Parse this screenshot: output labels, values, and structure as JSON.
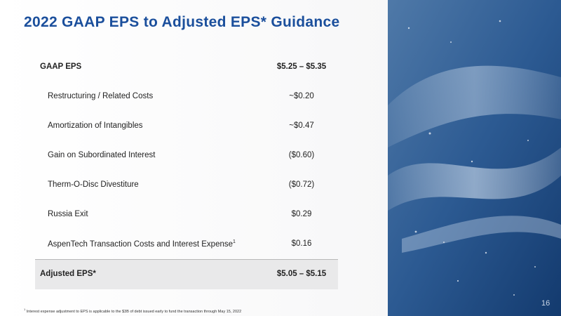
{
  "header": {
    "title": "2022 GAAP EPS to Adjusted EPS* Guidance"
  },
  "table": {
    "rows": [
      {
        "label": "GAAP EPS",
        "value": "$5.25 – $5.35"
      },
      {
        "label": "Restructuring / Related Costs",
        "value": "~$0.20"
      },
      {
        "label": "Amortization of Intangibles",
        "value": "~$0.47"
      },
      {
        "label": "Gain on Subordinated Interest",
        "value": "($0.60)"
      },
      {
        "label": "Therm-O-Disc Divestiture",
        "value": "($0.72)"
      },
      {
        "label": "Russia Exit",
        "value": "$0.29"
      },
      {
        "label": "AspenTech Transaction Costs and Interest Expense",
        "note": "1",
        "value": "$0.16"
      }
    ],
    "total": {
      "label": "Adjusted EPS*",
      "value": "$5.05 – $5.15"
    }
  },
  "footnote": {
    "marker": "1",
    "text": "Interest expense adjustment to EPS is applicable to the $3B of debt issued early to fund the transaction through May 15, 2022"
  },
  "page_number": "16"
}
